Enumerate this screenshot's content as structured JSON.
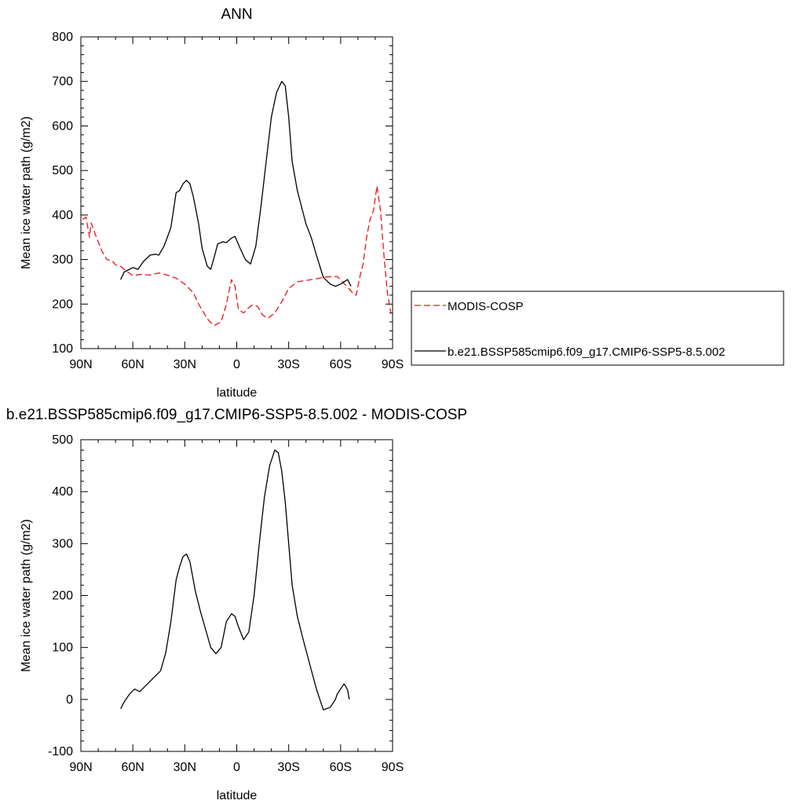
{
  "chart_data": [
    {
      "type": "line",
      "title": "ANN",
      "xlabel": "latitude",
      "ylabel": "Mean ice water path (g/m2)",
      "xlim": [
        90,
        -90
      ],
      "ylim": [
        100,
        800
      ],
      "xticks": [
        90,
        60,
        30,
        0,
        -30,
        -60,
        -90
      ],
      "xtick_labels": [
        "90N",
        "60N",
        "30N",
        "0",
        "30S",
        "60S",
        "90S"
      ],
      "yticks": [
        100,
        200,
        300,
        400,
        500,
        600,
        700,
        800
      ],
      "ytick_labels": [
        "100",
        "200",
        "300",
        "400",
        "500",
        "600",
        "700",
        "800"
      ],
      "legend_position": "right",
      "series": [
        {
          "name": "MODIS-COSP",
          "color": "#e8141d",
          "dash": "dashed",
          "x": [
            89,
            87,
            85,
            84,
            82,
            80,
            78,
            75,
            72,
            70,
            67,
            64,
            60,
            55,
            50,
            45,
            40,
            35,
            30,
            25,
            22,
            19,
            16,
            13,
            9,
            6,
            3,
            1,
            -1,
            -4,
            -7,
            -9,
            -12,
            -15,
            -18,
            -22,
            -26,
            -30,
            -35,
            -40,
            -45,
            -50,
            -55,
            -58,
            -61,
            -64,
            -67,
            -69,
            -71,
            -73,
            -75,
            -77,
            -79,
            -81,
            -83,
            -85,
            -87,
            -89
          ],
          "y": [
            390,
            395,
            350,
            382,
            360,
            340,
            320,
            300,
            298,
            288,
            285,
            275,
            264,
            267,
            265,
            270,
            265,
            258,
            245,
            225,
            200,
            180,
            162,
            152,
            160,
            200,
            255,
            240,
            188,
            180,
            192,
            198,
            195,
            175,
            168,
            180,
            205,
            235,
            250,
            253,
            256,
            260,
            262,
            262,
            250,
            238,
            225,
            220,
            260,
            290,
            350,
            390,
            410,
            465,
            410,
            310,
            225,
            180
          ]
        },
        {
          "name": "b.e21.BSSP585cmip6.f09_g17.CMIP6-SSP5-8.5.002",
          "color": "#000000",
          "dash": "solid",
          "x": [
            67,
            65,
            60,
            57,
            54,
            50,
            47,
            45,
            42,
            38,
            35,
            33,
            31,
            29,
            27,
            25,
            22,
            20,
            17,
            15,
            13,
            11,
            8,
            6,
            3,
            1,
            -2,
            -5,
            -8,
            -11,
            -14,
            -17,
            -20,
            -23,
            -26,
            -28,
            -30,
            -32,
            -35,
            -38,
            -40,
            -43,
            -46,
            -50,
            -54,
            -57,
            -60,
            -62,
            -64,
            -66
          ],
          "y": [
            255,
            272,
            282,
            278,
            295,
            310,
            312,
            310,
            330,
            372,
            450,
            455,
            470,
            478,
            470,
            440,
            380,
            325,
            285,
            278,
            305,
            335,
            340,
            338,
            348,
            352,
            325,
            300,
            290,
            330,
            420,
            520,
            620,
            675,
            700,
            690,
            620,
            520,
            455,
            410,
            380,
            350,
            310,
            260,
            245,
            240,
            245,
            250,
            255,
            240
          ]
        }
      ]
    },
    {
      "type": "line",
      "title": "b.e21.BSSP585cmip6.f09_g17.CMIP6-SSP5-8.5.002 - MODIS-COSP",
      "xlabel": "latitude",
      "ylabel": "Mean ice water path (g/m2)",
      "xlim": [
        90,
        -90
      ],
      "ylim": [
        -100,
        500
      ],
      "xticks": [
        90,
        60,
        30,
        0,
        -30,
        -60,
        -90
      ],
      "xtick_labels": [
        "90N",
        "60N",
        "30N",
        "0",
        "30S",
        "60S",
        "90S"
      ],
      "yticks": [
        -100,
        0,
        100,
        200,
        300,
        400,
        500
      ],
      "ytick_labels": [
        "-100",
        "0",
        "100",
        "200",
        "300",
        "400",
        "500"
      ],
      "series": [
        {
          "color": "#000000",
          "dash": "solid",
          "x": [
            67,
            65,
            62,
            59,
            56,
            53,
            50,
            47,
            44,
            41,
            38,
            35,
            33,
            31,
            29,
            27,
            24,
            21,
            18,
            15,
            12,
            9,
            6,
            3,
            1,
            -1,
            -4,
            -7,
            -10,
            -13,
            -16,
            -19,
            -22,
            -24,
            -26,
            -28,
            -30,
            -32,
            -35,
            -38,
            -42,
            -46,
            -50,
            -54,
            -57,
            -58,
            -59,
            -61,
            -62,
            -63,
            -64,
            -65
          ],
          "y": [
            -18,
            -5,
            10,
            20,
            15,
            25,
            35,
            45,
            55,
            90,
            150,
            230,
            255,
            275,
            280,
            265,
            210,
            170,
            135,
            100,
            88,
            100,
            150,
            165,
            160,
            140,
            115,
            130,
            200,
            300,
            390,
            450,
            480,
            475,
            440,
            380,
            300,
            220,
            160,
            120,
            70,
            20,
            -20,
            -15,
            0,
            10,
            15,
            25,
            30,
            25,
            18,
            0
          ]
        }
      ]
    }
  ]
}
